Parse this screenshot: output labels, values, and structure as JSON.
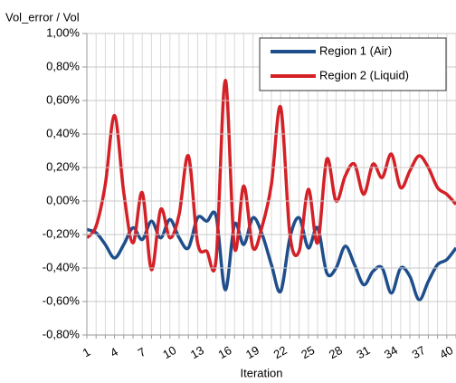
{
  "chart_data": {
    "type": "line",
    "title": "Vol_error / Vol",
    "x_label": "Iteration",
    "categories": [
      "1",
      null,
      null,
      "4",
      null,
      null,
      "7",
      null,
      null,
      "10",
      null,
      null,
      "13",
      null,
      null,
      "16",
      null,
      null,
      "19",
      null,
      null,
      "22",
      null,
      null,
      "25",
      null,
      null,
      "28",
      null,
      null,
      "31",
      null,
      null,
      "34",
      null,
      null,
      "37",
      null,
      null,
      "40",
      null
    ],
    "series": [
      {
        "name": "Region 1 (Air)",
        "color": "#1f4e8c",
        "values": [
          -0.17,
          -0.19,
          -0.26,
          -0.34,
          -0.26,
          -0.16,
          -0.23,
          -0.12,
          -0.22,
          -0.11,
          -0.22,
          -0.28,
          -0.1,
          -0.12,
          -0.09,
          -0.53,
          -0.14,
          -0.26,
          -0.1,
          -0.2,
          -0.38,
          -0.54,
          -0.22,
          -0.1,
          -0.28,
          -0.16,
          -0.43,
          -0.4,
          -0.27,
          -0.38,
          -0.5,
          -0.42,
          -0.4,
          -0.55,
          -0.4,
          -0.45,
          -0.59,
          -0.48,
          -0.38,
          -0.35,
          -0.28
        ]
      },
      {
        "name": "Region 2 (Liquid)",
        "color": "#d42127",
        "values": [
          -0.22,
          -0.15,
          0.1,
          0.51,
          0.05,
          -0.25,
          0.05,
          -0.41,
          -0.05,
          -0.22,
          -0.08,
          0.27,
          -0.25,
          -0.3,
          -0.35,
          0.72,
          -0.28,
          0.09,
          -0.28,
          -0.15,
          0.1,
          0.56,
          -0.2,
          -0.3,
          0.07,
          -0.25,
          0.25,
          0.0,
          0.15,
          0.22,
          0.04,
          0.22,
          0.14,
          0.28,
          0.08,
          0.18,
          0.27,
          0.2,
          0.08,
          0.04,
          -0.02
        ]
      }
    ],
    "ylim": [
      -0.8,
      1.0
    ],
    "yticks": [
      {
        "value": -0.8,
        "label": "-0,80%"
      },
      {
        "value": -0.6,
        "label": "-0,60%"
      },
      {
        "value": -0.4,
        "label": "-0,40%"
      },
      {
        "value": -0.2,
        "label": "-0,20%"
      },
      {
        "value": 0,
        "label": "0,00%"
      },
      {
        "value": 0.2,
        "label": "0,20%"
      },
      {
        "value": 0.4,
        "label": "0,40%"
      },
      {
        "value": 0.6,
        "label": "0,60%"
      },
      {
        "value": 0.8,
        "label": "0,80%"
      },
      {
        "value": 1.0,
        "label": "1,00%"
      }
    ],
    "grid": true,
    "legend": "top-right"
  }
}
